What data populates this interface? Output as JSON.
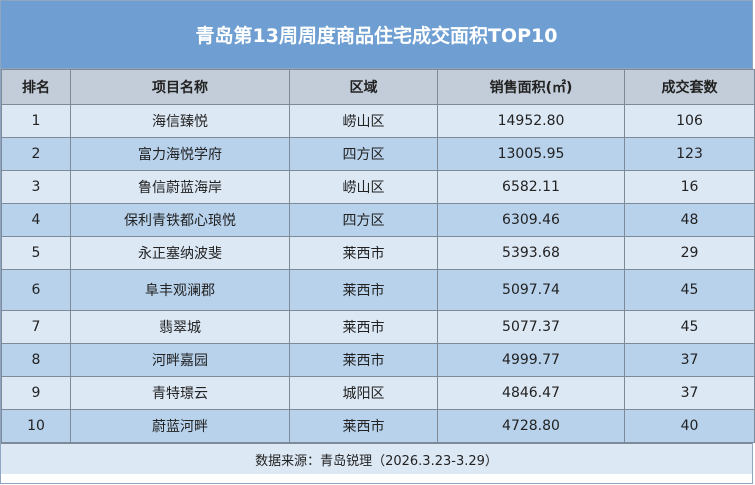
{
  "title": "青岛第13周周度商品住宅成交面积TOP10",
  "headers": [
    "排名",
    "项目名称",
    "区域",
    "销售面积(㎡)",
    "成交套数"
  ],
  "rows": [
    [
      "1",
      "海信臻悦",
      "崂山区",
      "14952.80",
      "106"
    ],
    [
      "2",
      "富力海悦学府",
      "四方区",
      "13005.95",
      "123"
    ],
    [
      "3",
      "鲁信蔚蓝海岸",
      "崂山区",
      "6582.11",
      "16"
    ],
    [
      "4",
      "保利青铁都心琅悦",
      "四方区",
      "6309.46",
      "48"
    ],
    [
      "5",
      "永正塞纳波斐",
      "莱西市",
      "5393.68",
      "29"
    ],
    [
      "6",
      "阜丰观澜郡",
      "莱西市",
      "5097.74",
      "45"
    ],
    [
      "7",
      "翡翠城",
      "莱西市",
      "5077.37",
      "45"
    ],
    [
      "8",
      "河畔嘉园",
      "莱西市",
      "4999.77",
      "37"
    ],
    [
      "9",
      "青特璟云",
      "城阳区",
      "4846.47",
      "37"
    ],
    [
      "10",
      "蔚蓝河畔",
      "莱西市",
      "4728.80",
      "40"
    ]
  ],
  "footer": "数据来源：青岛锐理（2026.3.23-3.29）",
  "colors": {
    "title_bg": "#6f9fd2",
    "header_bg": "#c3cdd9",
    "row_light": "#dde8f5",
    "row_dark": "#b8d2ec"
  }
}
